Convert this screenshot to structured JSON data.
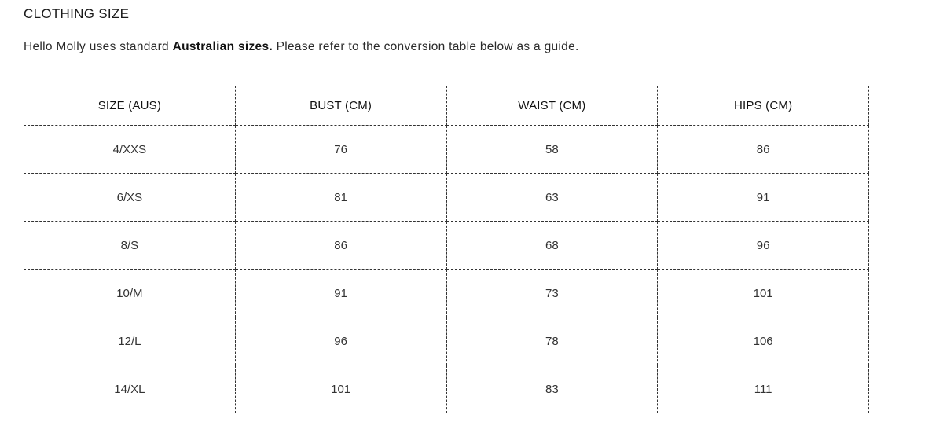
{
  "page": {
    "title": "CLOTHING SIZE",
    "intro": {
      "before": "Hello Molly uses standard ",
      "bold": "Australian sizes.",
      "after": " Please refer to the conversion table below as a guide."
    }
  },
  "table": {
    "headers": [
      "SIZE (AUS)",
      "BUST (CM)",
      "WAIST (CM)",
      "HIPS (CM)"
    ],
    "rows": [
      [
        "4/XXS",
        "76",
        "58",
        "86"
      ],
      [
        "6/XS",
        "81",
        "63",
        "91"
      ],
      [
        "8/S",
        "86",
        "68",
        "96"
      ],
      [
        "10/M",
        "91",
        "73",
        "101"
      ],
      [
        "12/L",
        "96",
        "78",
        "106"
      ],
      [
        "14/XL",
        "101",
        "83",
        "111"
      ]
    ]
  }
}
